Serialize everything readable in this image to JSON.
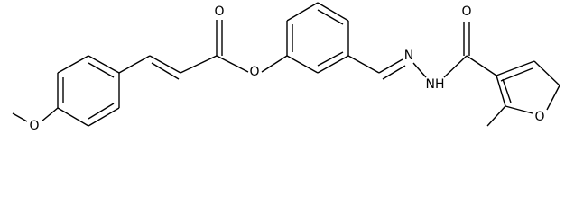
{
  "atoms": [
    {
      "label": "O"
    },
    {
      "label": "O"
    },
    {
      "label": "O"
    },
    {
      "label": "N"
    },
    {
      "label": "NH"
    },
    {
      "label": "O"
    },
    {
      "label": "O"
    }
  ]
}
